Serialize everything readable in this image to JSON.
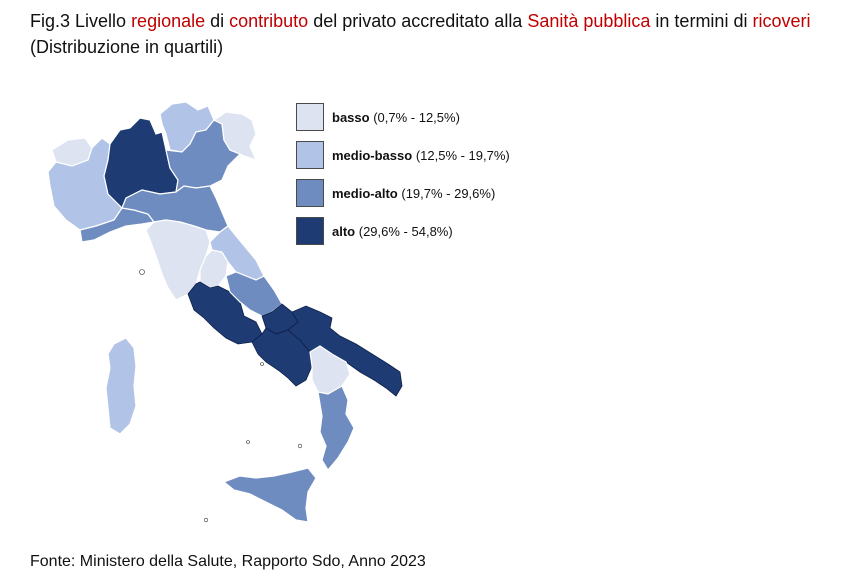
{
  "title": {
    "parts": [
      {
        "text": "Fig.3 Livello ",
        "highlight": false
      },
      {
        "text": "regionale",
        "highlight": true
      },
      {
        "text": " di ",
        "highlight": false
      },
      {
        "text": "contributo",
        "highlight": true
      },
      {
        "text": " del privato accreditato alla ",
        "highlight": false
      },
      {
        "text": "Sanità pubblica",
        "highlight": true
      },
      {
        "text": " in termini di ",
        "highlight": false
      },
      {
        "text": "ricoveri",
        "highlight": true
      }
    ],
    "line2": "(Distribuzione in quartili)"
  },
  "colors": {
    "basso": "#dde3f1",
    "medio_basso": "#b1c3e6",
    "medio_alto": "#6f8cc0",
    "alto": "#1f3b74",
    "highlight_text": "#c00000"
  },
  "legend": [
    {
      "key": "basso",
      "label": "basso",
      "range": "(0,7% - 12,5%)"
    },
    {
      "key": "medio_basso",
      "label": "medio-basso",
      "range": "(12,5% - 19,7%)"
    },
    {
      "key": "medio_alto",
      "label": "medio-alto",
      "range": "(19,7% - 29,6%)"
    },
    {
      "key": "alto",
      "label": "alto",
      "range": "(29,6% - 54,8%)"
    }
  ],
  "regions": [
    {
      "name": "Valle d'Aosta",
      "level": "basso"
    },
    {
      "name": "Piemonte",
      "level": "medio_basso"
    },
    {
      "name": "Lombardia",
      "level": "alto"
    },
    {
      "name": "Trentino-Alto Adige",
      "level": "medio_basso"
    },
    {
      "name": "Veneto",
      "level": "medio_alto"
    },
    {
      "name": "Friuli-Venezia Giulia",
      "level": "basso"
    },
    {
      "name": "Liguria",
      "level": "medio_alto"
    },
    {
      "name": "Emilia-Romagna",
      "level": "medio_alto"
    },
    {
      "name": "Toscana",
      "level": "basso"
    },
    {
      "name": "Umbria",
      "level": "basso"
    },
    {
      "name": "Marche",
      "level": "medio_basso"
    },
    {
      "name": "Lazio",
      "level": "alto"
    },
    {
      "name": "Abruzzo",
      "level": "medio_alto"
    },
    {
      "name": "Molise",
      "level": "alto"
    },
    {
      "name": "Campania",
      "level": "alto"
    },
    {
      "name": "Puglia",
      "level": "alto"
    },
    {
      "name": "Basilicata",
      "level": "basso"
    },
    {
      "name": "Calabria",
      "level": "medio_alto"
    },
    {
      "name": "Sicilia",
      "level": "medio_alto"
    },
    {
      "name": "Sardegna",
      "level": "medio_basso"
    }
  ],
  "source": "Fonte: Ministero della Salute, Rapporto Sdo, Anno 2023"
}
